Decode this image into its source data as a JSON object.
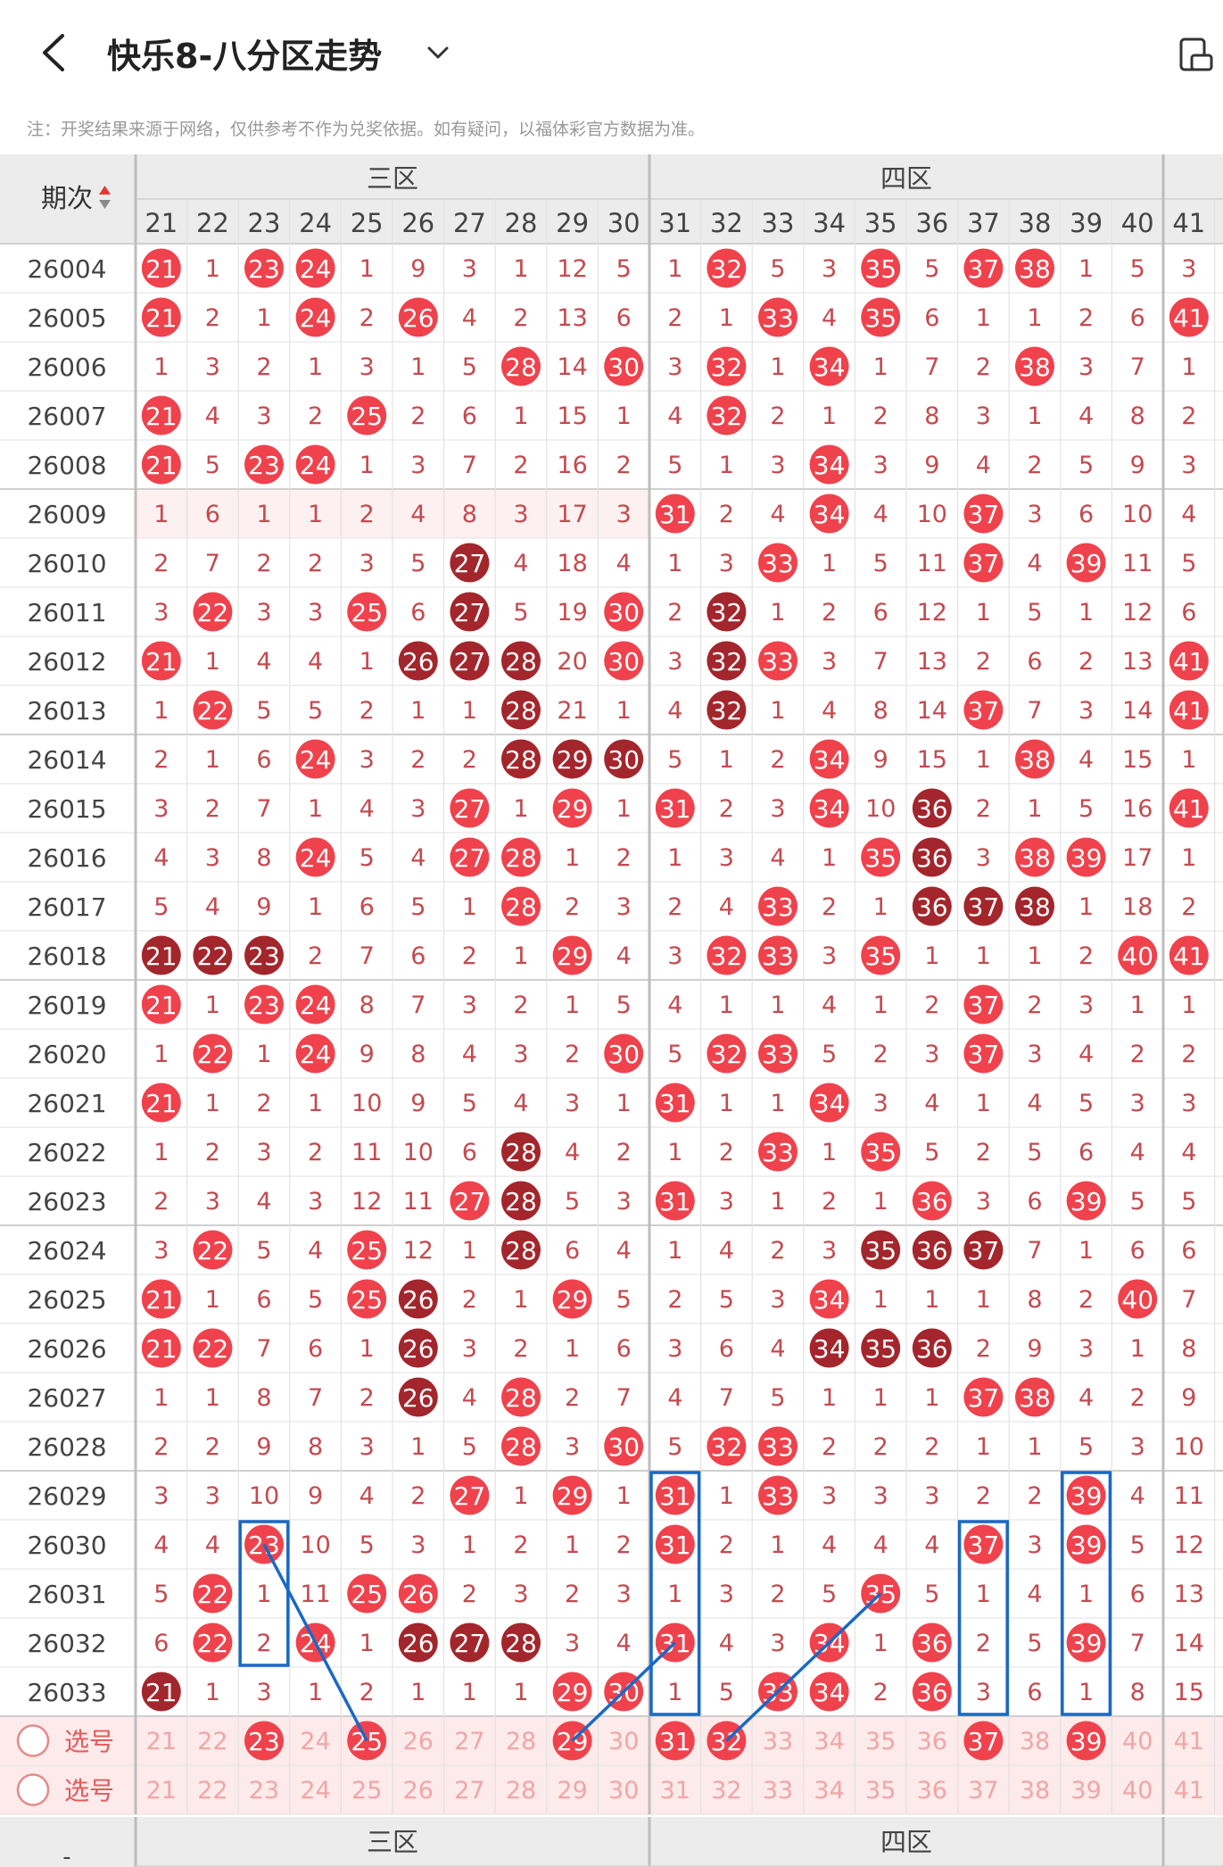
{
  "header": {
    "title": "快乐8-八分区走势",
    "note": "注：开奖结果来源于网络，仅供参考不作为兑奖依据。如有疑问，以福体彩官方数据为准。"
  },
  "table": {
    "period_header": "期次",
    "zones": [
      "三区",
      "四区"
    ],
    "columns": [
      "21",
      "22",
      "23",
      "24",
      "25",
      "26",
      "27",
      "28",
      "29",
      "30",
      "31",
      "32",
      "33",
      "34",
      "35",
      "36",
      "37",
      "38",
      "39",
      "40",
      "41"
    ],
    "rows": [
      {
        "issue": "26004",
        "cells": [
          "21",
          "1",
          "23",
          "24",
          "1",
          "9",
          "3",
          "1",
          "12",
          "5",
          "1",
          "32",
          "5",
          "3",
          "35",
          "5",
          "37",
          "38",
          "1",
          "5",
          "3"
        ]
      },
      {
        "issue": "26005",
        "cells": [
          "21",
          "2",
          "1",
          "24",
          "2",
          "26",
          "4",
          "2",
          "13",
          "6",
          "2",
          "1",
          "33",
          "4",
          "35",
          "6",
          "1",
          "1",
          "2",
          "6",
          "41"
        ]
      },
      {
        "issue": "26006",
        "cells": [
          "1",
          "3",
          "2",
          "1",
          "3",
          "1",
          "5",
          "28",
          "14",
          "30",
          "3",
          "32",
          "1",
          "34",
          "1",
          "7",
          "2",
          "38",
          "3",
          "7",
          "1"
        ]
      },
      {
        "issue": "26007",
        "cells": [
          "21",
          "4",
          "3",
          "2",
          "25",
          "2",
          "6",
          "1",
          "15",
          "1",
          "4",
          "32",
          "2",
          "1",
          "2",
          "8",
          "3",
          "1",
          "4",
          "8",
          "2"
        ]
      },
      {
        "issue": "26008",
        "cells": [
          "21",
          "5",
          "23",
          "24",
          "1",
          "3",
          "7",
          "2",
          "16",
          "2",
          "5",
          "1",
          "3",
          "34",
          "3",
          "9",
          "4",
          "2",
          "5",
          "9",
          "3"
        ]
      },
      {
        "issue": "26009",
        "cells": [
          "1",
          "6",
          "1",
          "1",
          "2",
          "4",
          "8",
          "3",
          "17",
          "3",
          "31",
          "2",
          "4",
          "34",
          "4",
          "10",
          "37",
          "3",
          "6",
          "10",
          "4"
        ]
      },
      {
        "issue": "26010",
        "cells": [
          "2",
          "7",
          "2",
          "2",
          "3",
          "5",
          "27",
          "4",
          "18",
          "4",
          "1",
          "3",
          "33",
          "1",
          "5",
          "11",
          "37",
          "4",
          "39",
          "11",
          "5"
        ]
      },
      {
        "issue": "26011",
        "cells": [
          "3",
          "22",
          "3",
          "3",
          "25",
          "6",
          "27",
          "5",
          "19",
          "30",
          "2",
          "32",
          "1",
          "2",
          "6",
          "12",
          "1",
          "5",
          "1",
          "12",
          "6"
        ]
      },
      {
        "issue": "26012",
        "cells": [
          "21",
          "1",
          "4",
          "4",
          "1",
          "26",
          "27",
          "28",
          "20",
          "30",
          "3",
          "32",
          "33",
          "3",
          "7",
          "13",
          "2",
          "6",
          "2",
          "13",
          "41"
        ]
      },
      {
        "issue": "26013",
        "cells": [
          "1",
          "22",
          "5",
          "5",
          "2",
          "1",
          "1",
          "28",
          "21",
          "1",
          "4",
          "32",
          "1",
          "4",
          "8",
          "14",
          "37",
          "7",
          "3",
          "14",
          "41"
        ]
      },
      {
        "issue": "26014",
        "cells": [
          "2",
          "1",
          "6",
          "24",
          "3",
          "2",
          "2",
          "28",
          "29",
          "30",
          "5",
          "1",
          "2",
          "34",
          "9",
          "15",
          "1",
          "38",
          "4",
          "15",
          "1"
        ]
      },
      {
        "issue": "26015",
        "cells": [
          "3",
          "2",
          "7",
          "1",
          "4",
          "3",
          "27",
          "1",
          "29",
          "1",
          "31",
          "2",
          "3",
          "34",
          "10",
          "36",
          "2",
          "1",
          "5",
          "16",
          "41"
        ]
      },
      {
        "issue": "26016",
        "cells": [
          "4",
          "3",
          "8",
          "24",
          "5",
          "4",
          "27",
          "28",
          "1",
          "2",
          "1",
          "3",
          "4",
          "1",
          "35",
          "36",
          "3",
          "38",
          "39",
          "17",
          "1"
        ]
      },
      {
        "issue": "26017",
        "cells": [
          "5",
          "4",
          "9",
          "1",
          "6",
          "5",
          "1",
          "28",
          "2",
          "3",
          "2",
          "4",
          "33",
          "2",
          "1",
          "36",
          "37",
          "38",
          "1",
          "18",
          "2"
        ]
      },
      {
        "issue": "26018",
        "cells": [
          "21",
          "22",
          "23",
          "2",
          "7",
          "6",
          "2",
          "1",
          "29",
          "4",
          "3",
          "32",
          "33",
          "3",
          "35",
          "1",
          "1",
          "1",
          "2",
          "40",
          "41"
        ]
      },
      {
        "issue": "26019",
        "cells": [
          "21",
          "1",
          "23",
          "24",
          "8",
          "7",
          "3",
          "2",
          "1",
          "5",
          "4",
          "1",
          "1",
          "4",
          "1",
          "2",
          "37",
          "2",
          "3",
          "1",
          "1"
        ]
      },
      {
        "issue": "26020",
        "cells": [
          "1",
          "22",
          "1",
          "24",
          "9",
          "8",
          "4",
          "3",
          "2",
          "30",
          "5",
          "32",
          "33",
          "5",
          "2",
          "3",
          "37",
          "3",
          "4",
          "2",
          "2"
        ]
      },
      {
        "issue": "26021",
        "cells": [
          "21",
          "1",
          "2",
          "1",
          "10",
          "9",
          "5",
          "4",
          "3",
          "1",
          "31",
          "1",
          "1",
          "34",
          "3",
          "4",
          "1",
          "4",
          "5",
          "3",
          "3"
        ]
      },
      {
        "issue": "26022",
        "cells": [
          "1",
          "2",
          "3",
          "2",
          "11",
          "10",
          "6",
          "28",
          "4",
          "2",
          "1",
          "2",
          "33",
          "1",
          "35",
          "5",
          "2",
          "5",
          "6",
          "4",
          "4"
        ]
      },
      {
        "issue": "26023",
        "cells": [
          "2",
          "3",
          "4",
          "3",
          "12",
          "11",
          "27",
          "28",
          "5",
          "3",
          "31",
          "3",
          "1",
          "2",
          "1",
          "36",
          "3",
          "6",
          "39",
          "5",
          "5"
        ]
      },
      {
        "issue": "26024",
        "cells": [
          "3",
          "22",
          "5",
          "4",
          "25",
          "12",
          "1",
          "28",
          "6",
          "4",
          "1",
          "4",
          "2",
          "3",
          "35",
          "36",
          "37",
          "7",
          "1",
          "6",
          "6"
        ]
      },
      {
        "issue": "26025",
        "cells": [
          "21",
          "1",
          "6",
          "5",
          "25",
          "26",
          "2",
          "1",
          "29",
          "5",
          "2",
          "5",
          "3",
          "34",
          "1",
          "1",
          "1",
          "8",
          "2",
          "40",
          "7"
        ]
      },
      {
        "issue": "26026",
        "cells": [
          "21",
          "22",
          "7",
          "6",
          "1",
          "26",
          "3",
          "2",
          "1",
          "6",
          "3",
          "6",
          "4",
          "34",
          "35",
          "36",
          "2",
          "9",
          "3",
          "1",
          "8"
        ]
      },
      {
        "issue": "26027",
        "cells": [
          "1",
          "1",
          "8",
          "7",
          "2",
          "26",
          "4",
          "28",
          "2",
          "7",
          "4",
          "7",
          "5",
          "1",
          "1",
          "1",
          "37",
          "38",
          "4",
          "2",
          "9"
        ]
      },
      {
        "issue": "26028",
        "cells": [
          "2",
          "2",
          "9",
          "8",
          "3",
          "1",
          "5",
          "28",
          "3",
          "30",
          "5",
          "32",
          "33",
          "2",
          "2",
          "2",
          "1",
          "1",
          "5",
          "3",
          "10"
        ]
      },
      {
        "issue": "26029",
        "cells": [
          "3",
          "3",
          "10",
          "9",
          "4",
          "2",
          "27",
          "1",
          "29",
          "1",
          "31",
          "1",
          "33",
          "3",
          "3",
          "3",
          "2",
          "2",
          "39",
          "4",
          "11"
        ]
      },
      {
        "issue": "26030",
        "cells": [
          "4",
          "4",
          "23",
          "10",
          "5",
          "3",
          "1",
          "2",
          "1",
          "2",
          "31",
          "2",
          "1",
          "4",
          "4",
          "4",
          "37",
          "3",
          "39",
          "5",
          "12"
        ]
      },
      {
        "issue": "26031",
        "cells": [
          "5",
          "22",
          "1",
          "11",
          "25",
          "26",
          "2",
          "3",
          "2",
          "3",
          "1",
          "3",
          "2",
          "5",
          "35",
          "5",
          "1",
          "4",
          "1",
          "6",
          "13"
        ]
      },
      {
        "issue": "26032",
        "cells": [
          "6",
          "22",
          "2",
          "24",
          "1",
          "26",
          "27",
          "28",
          "3",
          "4",
          "31",
          "4",
          "3",
          "34",
          "1",
          "36",
          "2",
          "5",
          "39",
          "7",
          "14"
        ]
      },
      {
        "issue": "26033",
        "cells": [
          "21",
          "1",
          "3",
          "1",
          "2",
          "1",
          "1",
          "1",
          "29",
          "30",
          "1",
          "5",
          "33",
          "34",
          "2",
          "36",
          "3",
          "6",
          "1",
          "8",
          "15"
        ]
      }
    ],
    "dark_cells": [
      "26010:27",
      "26011:27",
      "26011:32",
      "26012:26",
      "26012:27",
      "26012:28",
      "26012:32",
      "26013:28",
      "26013:32",
      "26014:28",
      "26014:29",
      "26014:30",
      "26015:36",
      "26016:36",
      "26017:36",
      "26017:37",
      "26017:38",
      "26018:21",
      "26018:22",
      "26018:23",
      "26022:28",
      "26023:28",
      "26024:28",
      "26024:35",
      "26024:36",
      "26024:37",
      "26025:26",
      "26026:26",
      "26026:34",
      "26026:35",
      "26026:36",
      "26027:26",
      "26032:26",
      "26032:27",
      "26032:28",
      "26033:21"
    ],
    "select_rows": [
      {
        "label": "选号",
        "picked": [
          "23",
          "25",
          "29",
          "31",
          "32",
          "37",
          "39"
        ]
      },
      {
        "label": "选号",
        "picked": []
      }
    ],
    "footer_zones": [
      "三区",
      "四区"
    ],
    "footer_period": "-"
  },
  "colors": {
    "ball_red": "#f0424c",
    "ball_dark": "#a3262c",
    "miss_text": "#c44a4f",
    "header_bg": "#ececec",
    "select_bg": "#fdeaea",
    "highlight_box": "#1a68c6"
  }
}
